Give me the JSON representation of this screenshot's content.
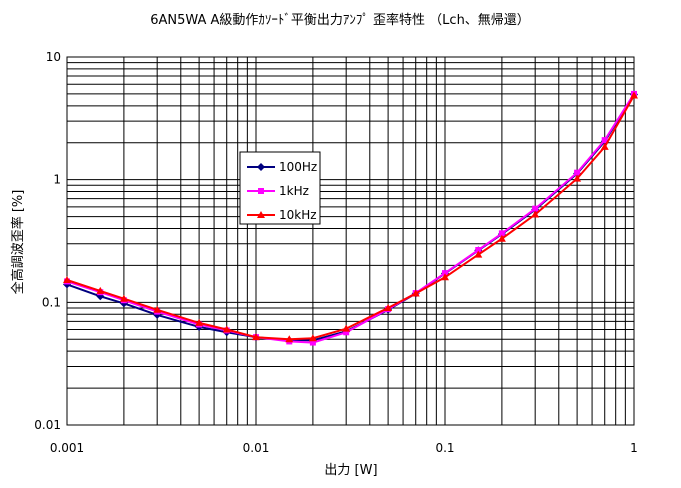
{
  "chart_data": {
    "type": "line",
    "title": "6AN5WA A級動作ｶｿｰﾄﾞ平衡出力ｱﾝﾌﾟ 歪率特性 （Lch、無帰還）",
    "xlabel": "出力 [W]",
    "ylabel": "全高調波歪率 [%]",
    "xscale": "log",
    "yscale": "log",
    "xlim": [
      0.001,
      1
    ],
    "ylim": [
      0.01,
      10
    ],
    "x_ticks": [
      "0.001",
      "0.01",
      "0.1",
      "1"
    ],
    "y_ticks": [
      "0.01",
      "0.1",
      "1",
      "10"
    ],
    "grid": true,
    "legend_position": "upper-left inside plot",
    "series": [
      {
        "name": "100Hz",
        "color": "#000080",
        "marker": "diamond",
        "x": [
          0.001,
          0.0015,
          0.002,
          0.003,
          0.005,
          0.007,
          0.01,
          0.015,
          0.02,
          0.03,
          0.05,
          0.07,
          0.1,
          0.15,
          0.2,
          0.3,
          0.5,
          0.7,
          1
        ],
        "y": [
          0.14,
          0.112,
          0.098,
          0.079,
          0.063,
          0.057,
          0.052,
          0.049,
          0.049,
          0.058,
          0.087,
          0.118,
          0.172,
          0.265,
          0.36,
          0.57,
          1.12,
          2.05,
          4.95
        ]
      },
      {
        "name": "1kHz",
        "color": "#ff00ff",
        "marker": "square",
        "x": [
          0.001,
          0.0015,
          0.002,
          0.003,
          0.005,
          0.007,
          0.01,
          0.015,
          0.02,
          0.03,
          0.05,
          0.07,
          0.1,
          0.15,
          0.2,
          0.3,
          0.5,
          0.7,
          1
        ],
        "y": [
          0.148,
          0.121,
          0.104,
          0.084,
          0.066,
          0.059,
          0.052,
          0.048,
          0.047,
          0.057,
          0.088,
          0.119,
          0.173,
          0.267,
          0.365,
          0.58,
          1.14,
          2.1,
          5.0
        ]
      },
      {
        "name": "10kHz",
        "color": "#ff0000",
        "marker": "triangle",
        "x": [
          0.001,
          0.0015,
          0.002,
          0.003,
          0.005,
          0.007,
          0.01,
          0.015,
          0.02,
          0.03,
          0.05,
          0.07,
          0.1,
          0.15,
          0.2,
          0.3,
          0.5,
          0.7,
          1
        ],
        "y": [
          0.152,
          0.124,
          0.107,
          0.087,
          0.068,
          0.06,
          0.052,
          0.05,
          0.051,
          0.061,
          0.09,
          0.118,
          0.16,
          0.245,
          0.33,
          0.52,
          1.02,
          1.85,
          4.85
        ]
      }
    ]
  }
}
